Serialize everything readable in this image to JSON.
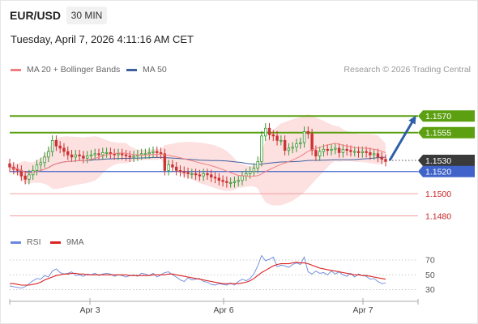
{
  "header": {
    "symbol": "EUR/USD",
    "timeframe": "30 MIN",
    "datetime": "Tuesday, April 7, 2026 4:11:16 AM CET"
  },
  "legend": {
    "ma20_label": "MA 20 + Bollinger Bands",
    "ma50_label": "MA 50",
    "copyright": "Research © 2026 Trading Central"
  },
  "rsi_legend": {
    "rsi_label": "RSI",
    "ma9_label": "9MA"
  },
  "colors": {
    "ma20": "#f08080",
    "ma50": "#3f5f9f",
    "resistance": "#5ca012",
    "support": "#3f63c9",
    "red_level": "#f0a0a0",
    "arrow": "#2e5fa8",
    "candle_up": "#339933",
    "candle_down": "#cc3333",
    "rsi": "#6688dd",
    "rsi_ma": "#dd2222"
  },
  "chart_data": [
    {
      "type": "candlestick",
      "title": "EUR/USD 30 MIN",
      "x_ticks": [
        "Apr 3",
        "Apr 6",
        "Apr 7"
      ],
      "ylim": [
        1.1468,
        1.1584
      ],
      "price_levels": [
        {
          "value": 1.157,
          "label": "1.1570",
          "kind": "resistance"
        },
        {
          "value": 1.1555,
          "label": "1.1555",
          "kind": "resistance"
        },
        {
          "value": 1.153,
          "label": "1.1530",
          "kind": "last"
        },
        {
          "value": 1.152,
          "label": "1.1520",
          "kind": "pivot"
        },
        {
          "value": 1.15,
          "label": "1.1500",
          "kind": "support"
        },
        {
          "value": 1.148,
          "label": "1.1480",
          "kind": "support"
        }
      ],
      "close_series": [
        1.1524,
        1.1522,
        1.1521,
        1.1516,
        1.1513,
        1.1517,
        1.1521,
        1.1526,
        1.1528,
        1.1533,
        1.1538,
        1.1548,
        1.1543,
        1.1541,
        1.1538,
        1.1535,
        1.1533,
        1.1535,
        1.1534,
        1.1532,
        1.1534,
        1.1535,
        1.1536,
        1.1535,
        1.1537,
        1.1537,
        1.1536,
        1.1535,
        1.1536,
        1.1535,
        1.1534,
        1.1533,
        1.1534,
        1.1535,
        1.1536,
        1.1536,
        1.1537,
        1.1538,
        1.1537,
        1.1536,
        1.1521,
        1.1526,
        1.1524,
        1.1521,
        1.152,
        1.1519,
        1.1518,
        1.1518,
        1.1517,
        1.1516,
        1.1518,
        1.1517,
        1.1515,
        1.1514,
        1.1512,
        1.1511,
        1.151,
        1.151,
        1.1511,
        1.1512,
        1.1516,
        1.1518,
        1.152,
        1.1523,
        1.1529,
        1.1552,
        1.1559,
        1.1553,
        1.1552,
        1.1548,
        1.1548,
        1.1539,
        1.1541,
        1.1542,
        1.1545,
        1.1546,
        1.1556,
        1.1554,
        1.1539,
        1.1534,
        1.1538,
        1.154,
        1.1539,
        1.154,
        1.1541,
        1.1537,
        1.154,
        1.1539,
        1.1538,
        1.1538,
        1.1537,
        1.1538,
        1.1537,
        1.1535,
        1.1536,
        1.1533,
        1.1531,
        1.1529
      ],
      "forecast": {
        "from": 1.153,
        "to": 1.157
      }
    },
    {
      "type": "line",
      "title": "RSI",
      "yticks": [
        70,
        50,
        30
      ],
      "series": [
        {
          "name": "RSI",
          "values": [
            35,
            34,
            33,
            32,
            34,
            38,
            42,
            45,
            44,
            49,
            47,
            55,
            58,
            53,
            51,
            52,
            54,
            49,
            50,
            48,
            51,
            50,
            52,
            49,
            51,
            52,
            51,
            48,
            50,
            49,
            47,
            49,
            50,
            48,
            52,
            51,
            49,
            52,
            47,
            50,
            53,
            54,
            50,
            47,
            43,
            41,
            46,
            43,
            44,
            45,
            41,
            40,
            37,
            36,
            38,
            37,
            36,
            39,
            36,
            41,
            44,
            42,
            45,
            51,
            62,
            76,
            69,
            71,
            74,
            61,
            63,
            62,
            60,
            64,
            66,
            64,
            74,
            54,
            51,
            55,
            52,
            53,
            50,
            55,
            51,
            54,
            50,
            48,
            52,
            47,
            51,
            49,
            48,
            44,
            45,
            41,
            38,
            39
          ]
        },
        {
          "name": "9MA",
          "values": [
            38,
            38,
            37,
            36,
            36,
            36,
            37,
            38,
            40,
            43,
            45,
            47,
            49,
            50,
            51,
            51,
            52,
            52,
            51,
            51,
            50,
            50,
            50,
            50,
            50,
            50,
            50,
            50,
            50,
            50,
            50,
            49,
            49,
            49,
            49,
            49,
            49,
            50,
            50,
            50,
            50,
            51,
            51,
            50,
            49,
            48,
            47,
            46,
            45,
            44,
            43,
            42,
            41,
            40,
            39,
            38,
            38,
            38,
            38,
            38,
            39,
            40,
            42,
            45,
            49,
            53,
            56,
            59,
            62,
            64,
            65,
            65,
            65,
            66,
            67,
            66,
            66,
            65,
            63,
            61,
            59,
            58,
            57,
            56,
            55,
            54,
            53,
            52,
            51,
            50,
            50,
            49,
            49,
            48,
            47,
            46,
            45,
            44
          ]
        }
      ]
    }
  ]
}
